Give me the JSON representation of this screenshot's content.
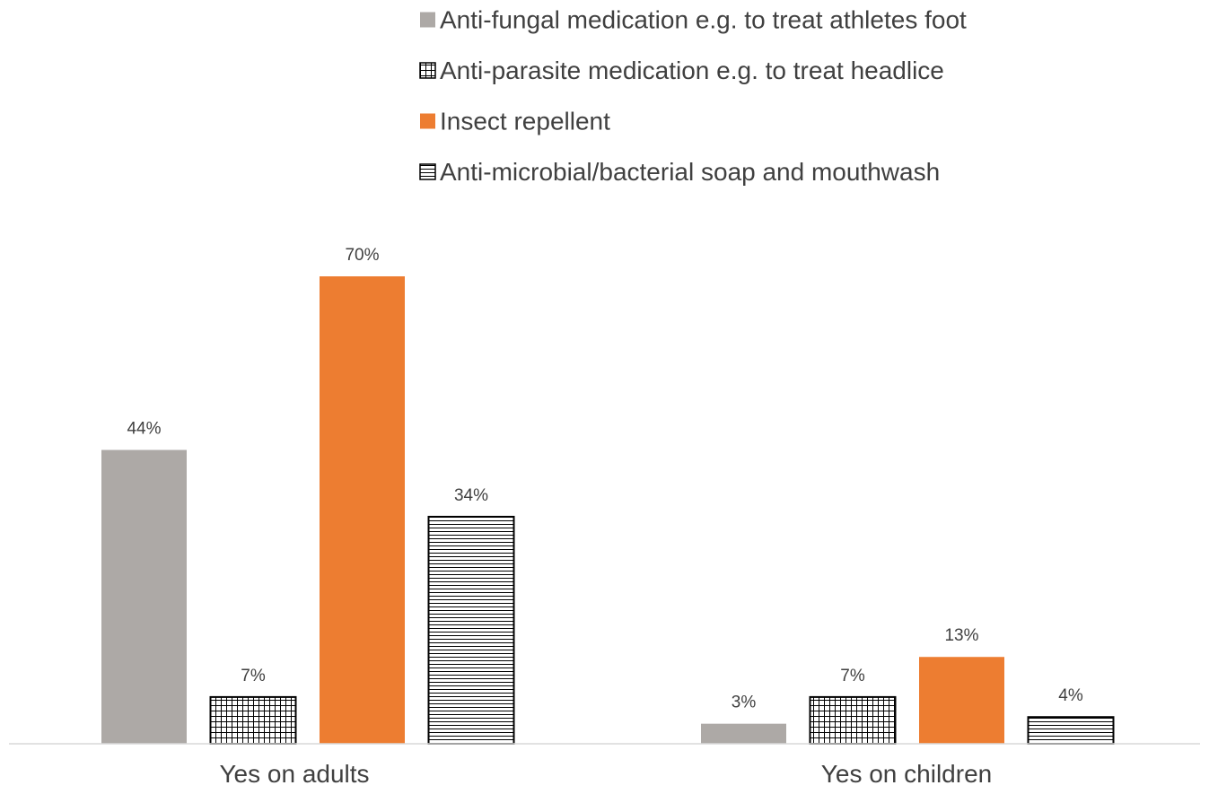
{
  "chart_data": {
    "type": "bar",
    "title": "",
    "xlabel": "",
    "ylabel": "",
    "ylim": [
      0,
      75
    ],
    "grid": false,
    "legend_position": "top",
    "categories": [
      "Yes on adults",
      "Yes on children"
    ],
    "series": [
      {
        "name": "Anti-fungal medication e.g. to treat athletes foot",
        "pattern": "solid",
        "color": "#ADA9A6",
        "values": [
          44,
          3
        ],
        "labels": [
          "44%",
          "3%"
        ]
      },
      {
        "name": "Anti-parasite medication e.g. to treat headlice",
        "pattern": "grid",
        "color": "#000000",
        "values": [
          7,
          7
        ],
        "labels": [
          "7%",
          "7%"
        ]
      },
      {
        "name": "Insect repellent",
        "pattern": "solid",
        "color": "#ED7D31",
        "values": [
          70,
          13
        ],
        "labels": [
          "70%",
          "13%"
        ]
      },
      {
        "name": "Anti-microbial/bacterial soap and mouthwash",
        "pattern": "horizontal-lines",
        "color": "#000000",
        "values": [
          34,
          4
        ],
        "labels": [
          "34%",
          "4%"
        ]
      }
    ]
  }
}
